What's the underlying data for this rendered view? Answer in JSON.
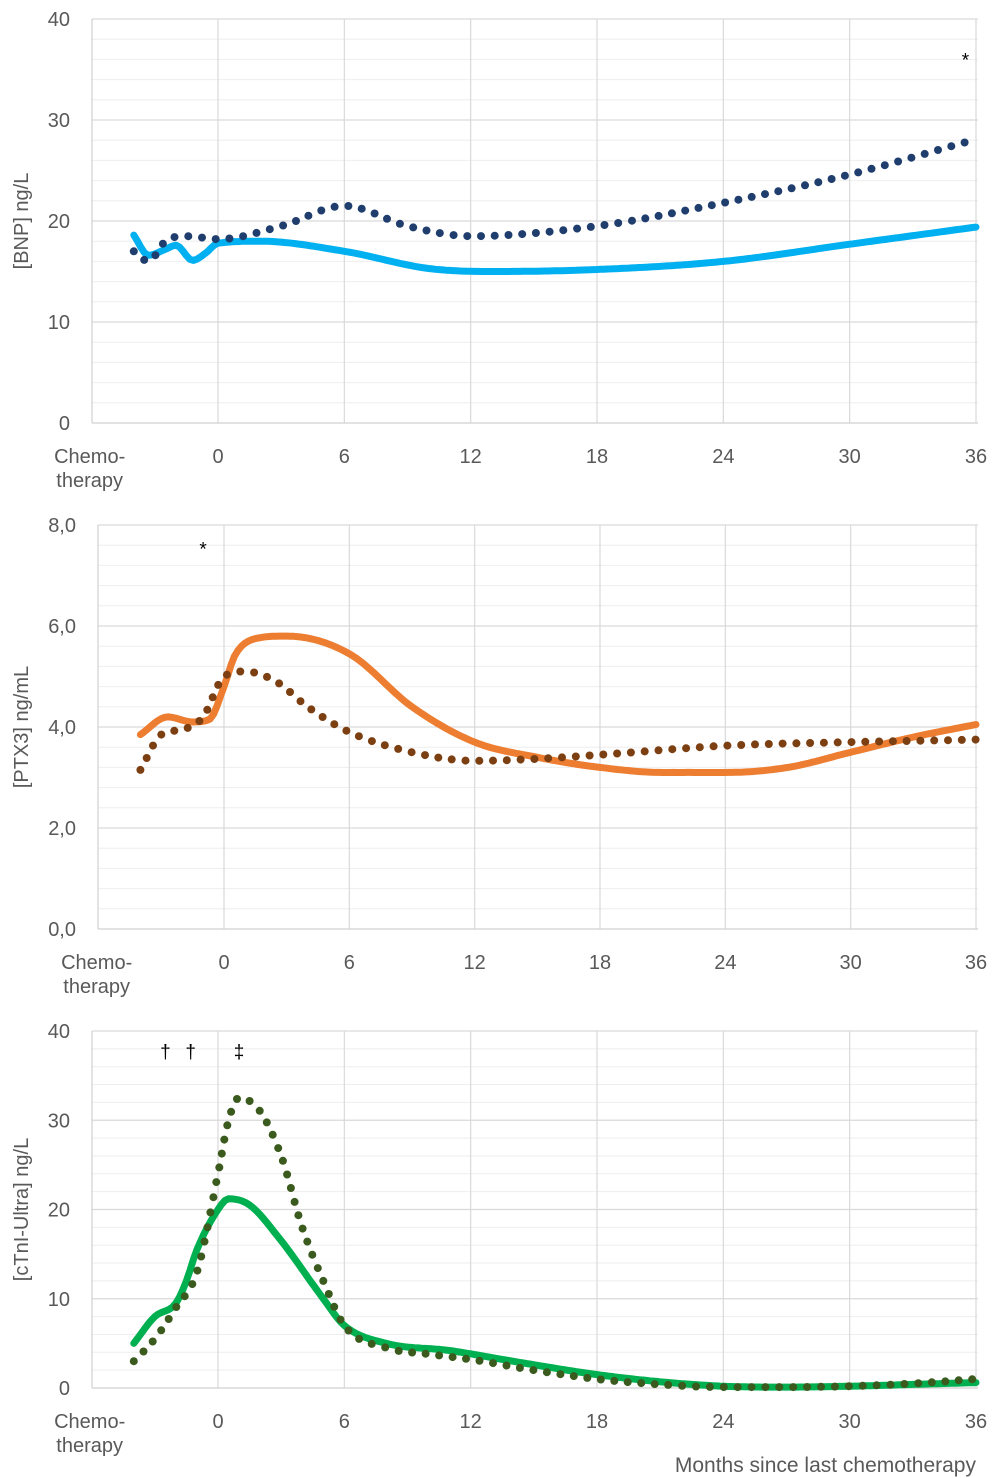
{
  "x_title": "Months since last chemotherapy",
  "chart_data": [
    {
      "type": "line",
      "ylabel": "[BNP] ng/L",
      "ylim": [
        0,
        40
      ],
      "yticks": [
        "0",
        "10",
        "20",
        "30",
        "40"
      ],
      "xlim": [
        -8.5,
        36
      ],
      "x_ticks": [
        {
          "x": -6,
          "label": [
            "Chemo-",
            "therapy"
          ]
        },
        {
          "x": 0,
          "label": [
            "0"
          ]
        },
        {
          "x": 6,
          "label": [
            "6"
          ]
        },
        {
          "x": 12,
          "label": [
            "12"
          ]
        },
        {
          "x": 18,
          "label": [
            "18"
          ]
        },
        {
          "x": 24,
          "label": [
            "24"
          ]
        },
        {
          "x": 30,
          "label": [
            "30"
          ]
        },
        {
          "x": 36,
          "label": [
            "36"
          ]
        }
      ],
      "grid": true,
      "annotations": [
        {
          "text": "*",
          "x": 35.5,
          "y": 35.3
        }
      ],
      "series": [
        {
          "style": "solid",
          "color": "#00b0f0",
          "x": [
            -4,
            -3.3,
            -2.5,
            -2,
            -1.2,
            -0.6,
            0,
            2,
            6,
            10,
            13,
            18,
            24,
            30,
            36
          ],
          "y": [
            18.6,
            16.6,
            17.2,
            17.6,
            16.1,
            16.8,
            17.8,
            18,
            17,
            15.3,
            15,
            15.2,
            16,
            17.7,
            19.4
          ]
        },
        {
          "style": "dotted",
          "color": "#1f3e6e",
          "x": [
            -4,
            -3.3,
            -2.5,
            -1.5,
            0,
            3,
            6,
            9,
            12,
            18,
            24,
            30,
            35.5
          ],
          "y": [
            17,
            16,
            18,
            18.5,
            18.2,
            19.5,
            21.5,
            19.5,
            18.5,
            19.5,
            21.8,
            24.6,
            27.8
          ]
        }
      ]
    },
    {
      "type": "line",
      "ylabel": "[PTX3] ng/mL",
      "ylim": [
        0,
        8
      ],
      "yticks": [
        "0,0",
        "2,0",
        "4,0",
        "6,0",
        "8,0"
      ],
      "xlim": [
        -8.5,
        36
      ],
      "x_ticks": [
        {
          "x": -6,
          "label": [
            "Chemo-",
            "therapy"
          ]
        },
        {
          "x": 0,
          "label": [
            "0"
          ]
        },
        {
          "x": 6,
          "label": [
            "6"
          ]
        },
        {
          "x": 12,
          "label": [
            "12"
          ]
        },
        {
          "x": 18,
          "label": [
            "18"
          ]
        },
        {
          "x": 24,
          "label": [
            "24"
          ]
        },
        {
          "x": 30,
          "label": [
            "30"
          ]
        },
        {
          "x": 36,
          "label": [
            "36"
          ]
        }
      ],
      "grid": true,
      "annotations": [
        {
          "text": "*",
          "x": -1,
          "y": 7.4
        }
      ],
      "series": [
        {
          "style": "solid",
          "color": "#ed7d31",
          "x": [
            -4,
            -2.7,
            -1.5,
            -0.7,
            0,
            0.5,
            1.5,
            3,
            6,
            9,
            12,
            15,
            18,
            21,
            24,
            27,
            30,
            33,
            36
          ],
          "y": [
            3.85,
            4.2,
            4.1,
            4.15,
            4.8,
            5.4,
            5.75,
            5.8,
            5.45,
            4.4,
            3.7,
            3.4,
            3.2,
            3.1,
            3.1,
            3.2,
            3.5,
            3.8,
            4.05
          ]
        },
        {
          "style": "dotted",
          "color": "#7b3f12",
          "x": [
            -4,
            -3,
            -2,
            -1,
            0,
            1,
            2.5,
            4,
            6,
            9,
            12,
            15,
            18,
            24,
            30,
            36
          ],
          "y": [
            3.15,
            3.85,
            3.95,
            4.2,
            5.0,
            5.1,
            4.9,
            4.4,
            3.9,
            3.5,
            3.33,
            3.37,
            3.45,
            3.63,
            3.7,
            3.75
          ]
        }
      ]
    },
    {
      "type": "line",
      "ylabel": "[cTnI-Ultra] ng/L",
      "ylim": [
        0,
        40
      ],
      "yticks": [
        "0",
        "10",
        "20",
        "30",
        "40"
      ],
      "xlim": [
        -8.5,
        36
      ],
      "x_ticks": [
        {
          "x": -6,
          "label": [
            "Chemo-",
            "therapy"
          ]
        },
        {
          "x": 0,
          "label": [
            "0"
          ]
        },
        {
          "x": 6,
          "label": [
            "6"
          ]
        },
        {
          "x": 12,
          "label": [
            "12"
          ]
        },
        {
          "x": 18,
          "label": [
            "18"
          ]
        },
        {
          "x": 24,
          "label": [
            "24"
          ]
        },
        {
          "x": 30,
          "label": [
            "30"
          ]
        },
        {
          "x": 36,
          "label": [
            "36"
          ]
        }
      ],
      "grid": true,
      "annotations": [
        {
          "text": "†",
          "x": -2.5,
          "y": 37
        },
        {
          "text": "†",
          "x": -1.3,
          "y": 37
        },
        {
          "text": "‡",
          "x": 1,
          "y": 37
        }
      ],
      "series": [
        {
          "style": "solid",
          "color": "#00b050",
          "x": [
            -4,
            -3,
            -2,
            -1.5,
            -1,
            0,
            0.5,
            1.5,
            3,
            5,
            6,
            8,
            11,
            14,
            18,
            21,
            24,
            27,
            30,
            33,
            36
          ],
          "y": [
            5,
            8,
            9.5,
            12,
            15.5,
            20,
            21.2,
            20.5,
            16.5,
            10,
            7,
            5,
            4.2,
            3,
            1.5,
            0.7,
            0.2,
            0.1,
            0.2,
            0.4,
            0.6
          ]
        },
        {
          "style": "dotted",
          "color": "#3b5a1e",
          "x": [
            -4,
            -3,
            -2,
            -1,
            0,
            0.5,
            1,
            2,
            3,
            4,
            5,
            6,
            8,
            10,
            12,
            15,
            18,
            21,
            24,
            27,
            30,
            33,
            36
          ],
          "y": [
            3,
            5.5,
            9,
            13,
            24,
            30,
            32.5,
            31,
            26,
            18,
            12,
            7,
            4.5,
            3.8,
            3.2,
            2,
            1,
            0.4,
            0.1,
            0.1,
            0.2,
            0.5,
            1
          ]
        }
      ]
    }
  ]
}
